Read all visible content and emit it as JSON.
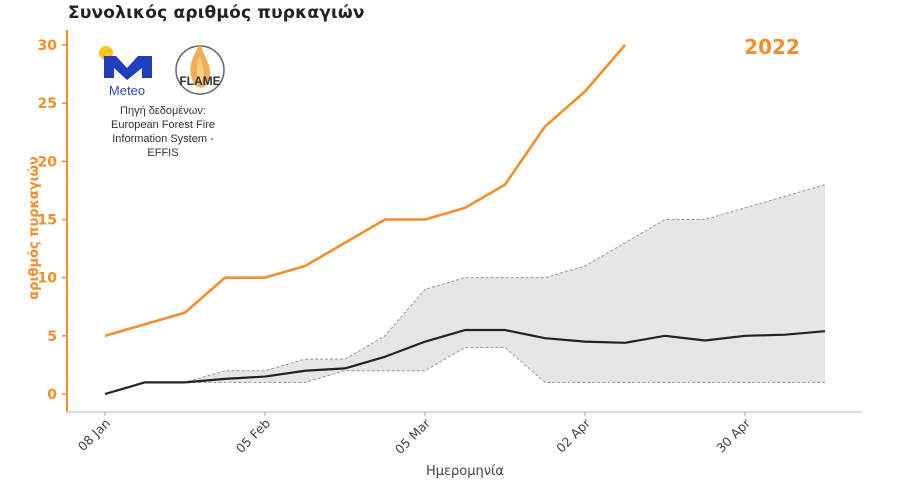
{
  "title": "Συνολικός αριθμός πυρκαγιών",
  "year_label": "2022",
  "source_text": {
    "line1": "Πηγή δεδομένων:",
    "line2": "European Forest Fire",
    "line3": "Information System -",
    "line4": "EFFIS"
  },
  "logos": {
    "meteo": "Meteo",
    "flame": "FLAME"
  },
  "colors": {
    "current_year": "#f28e2b",
    "mean": "#222222",
    "band_fill": "#e6e6e6",
    "band_edge": "#999999",
    "axis": "#f28e2b"
  },
  "chart_data": {
    "type": "line",
    "title": "Συνολικός αριθμός πυρκαγιών",
    "xlabel": "Ημερομηνία",
    "ylabel": "αριθμός πυρκαγιών",
    "ylim": [
      -1,
      31
    ],
    "yticks": [
      0,
      5,
      10,
      15,
      20,
      25,
      30
    ],
    "xtick_labels": [
      "08 Jan",
      "05 Feb",
      "05 Mar",
      "02 Apr",
      "30 Apr"
    ],
    "xtick_index": [
      0,
      4,
      8,
      12,
      16
    ],
    "x_step": "weekly",
    "grid": false,
    "annotation": "2022",
    "series": [
      {
        "name": "2022",
        "style": "line",
        "color": "#f28e2b",
        "values": [
          5,
          6,
          7,
          10,
          10,
          11,
          13,
          15,
          15,
          16,
          18,
          23,
          26,
          30
        ]
      },
      {
        "name": "mean",
        "style": "line",
        "color": "#222222",
        "values": [
          0,
          1,
          1,
          1.3,
          1.5,
          2,
          2.2,
          3.2,
          4.5,
          5.5,
          5.5,
          4.8,
          4.5,
          4.4,
          5,
          4.6,
          5,
          5.1,
          5.4
        ]
      },
      {
        "name": "max",
        "style": "band-upper-dashed",
        "values": [
          0,
          1,
          1,
          2,
          2,
          3,
          3,
          5,
          9,
          10,
          10,
          10,
          11,
          13,
          15,
          15,
          16,
          17,
          18
        ]
      },
      {
        "name": "min",
        "style": "band-lower-dashed",
        "values": [
          0,
          1,
          1,
          1,
          1,
          1,
          2,
          2,
          2,
          4,
          4,
          1,
          1,
          1,
          1,
          1,
          1,
          1,
          1
        ]
      }
    ]
  }
}
